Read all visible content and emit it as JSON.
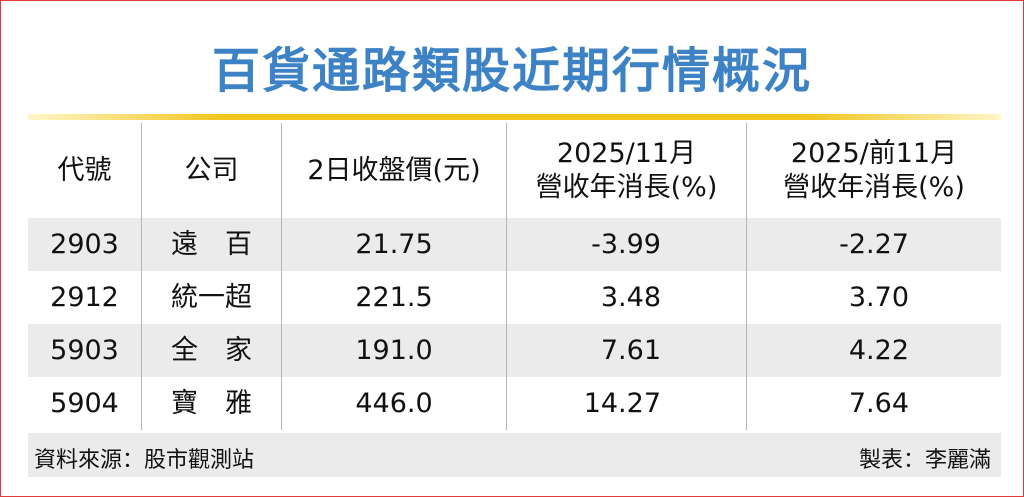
{
  "title": "百貨通路類股近期行情概況",
  "table": {
    "header": [
      "代號",
      "公司",
      "2日收盤價(元)",
      "2025/11月\n營收年消長(%)",
      "2025/前11月\n營收年消長(%)"
    ],
    "rows": [
      [
        "2903",
        "遠　百",
        "21.75",
        "-3.99",
        "-2.27"
      ],
      [
        "2912",
        "統一超",
        "221.5",
        "3.48",
        "3.70"
      ],
      [
        "5903",
        "全　家",
        "191.0",
        "7.61",
        "4.22"
      ],
      [
        "5904",
        "寶　雅",
        "446.0",
        "14.27",
        "7.64"
      ]
    ]
  },
  "footer": {
    "source": "資料來源：股市觀測站",
    "author": "製表：李麗滿"
  }
}
